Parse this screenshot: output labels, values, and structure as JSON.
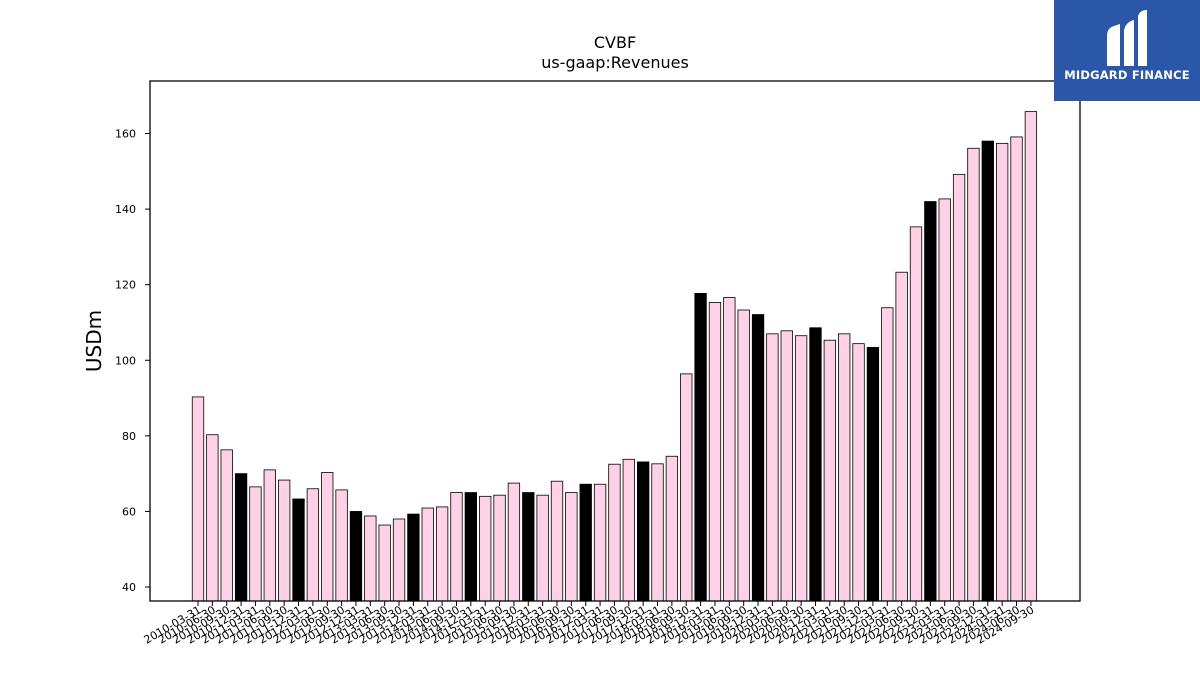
{
  "chart_data": {
    "type": "bar",
    "title": "CVBF",
    "subtitle": "us-gaap:Revenues",
    "xlabel": "",
    "ylabel": "USDm",
    "ylim": [
      36.3,
      173.9
    ],
    "yticks": [
      40,
      60,
      80,
      100,
      120,
      140,
      160
    ],
    "grid": false,
    "colors": {
      "regular": "#ffd1e6",
      "q4": "#000000",
      "edge": "#000000"
    },
    "categories": [
      "2010-03-31",
      "2010-06-30",
      "2010-09-30",
      "2010-12-31",
      "2011-03-31",
      "2011-06-30",
      "2011-09-30",
      "2011-12-31",
      "2012-03-31",
      "2012-06-30",
      "2012-09-30",
      "2012-12-31",
      "2013-03-31",
      "2013-06-30",
      "2013-09-30",
      "2013-12-31",
      "2014-03-31",
      "2014-06-30",
      "2014-09-30",
      "2014-12-31",
      "2015-03-31",
      "2015-06-30",
      "2015-09-30",
      "2015-12-31",
      "2016-03-31",
      "2016-06-30",
      "2016-09-30",
      "2016-12-31",
      "2017-03-31",
      "2017-06-30",
      "2017-09-30",
      "2017-12-31",
      "2018-03-31",
      "2018-06-30",
      "2018-09-30",
      "2018-12-31",
      "2019-03-31",
      "2019-06-30",
      "2019-09-30",
      "2019-12-31",
      "2020-03-31",
      "2020-06-30",
      "2020-09-30",
      "2020-12-31",
      "2021-03-31",
      "2021-06-30",
      "2021-09-30",
      "2021-12-31",
      "2022-03-31",
      "2022-06-30",
      "2022-09-30",
      "2022-12-31",
      "2023-03-31",
      "2023-06-30",
      "2023-09-30",
      "2023-12-31",
      "2024-03-31",
      "2024-06-30",
      "2024-09-30"
    ],
    "values": [
      90.3,
      80.3,
      76.3,
      70.0,
      66.5,
      71.0,
      68.3,
      63.3,
      66.0,
      70.3,
      65.7,
      60.0,
      58.8,
      56.4,
      58.0,
      59.3,
      60.9,
      61.2,
      65.0,
      65.0,
      64.0,
      64.3,
      67.5,
      65.0,
      64.3,
      68.0,
      65.0,
      67.2,
      67.2,
      72.5,
      73.8,
      73.1,
      72.6,
      74.6,
      96.4,
      117.7,
      115.3,
      116.6,
      113.3,
      112.1,
      107.0,
      107.8,
      106.5,
      108.6,
      105.3,
      107.0,
      104.4,
      103.4,
      113.9,
      123.3,
      135.3,
      142.0,
      142.7,
      149.2,
      156.1,
      158.0,
      157.4,
      159.1,
      165.8
    ],
    "highlight_q4": true
  },
  "logo": {
    "text": "MIDGARD FINANCE",
    "icon": "midgard-m-logo-icon"
  }
}
